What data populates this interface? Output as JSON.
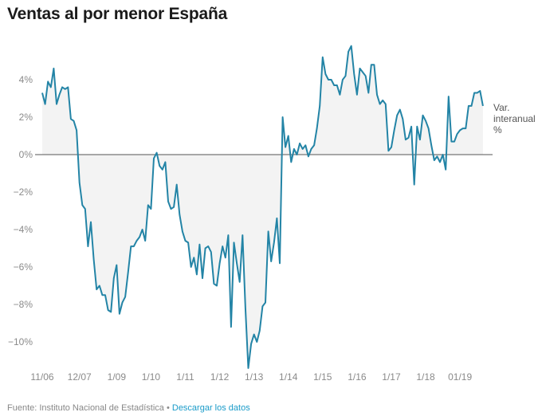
{
  "title": "Ventas al por menor España",
  "footer": {
    "source": "Fuente: Instituto Nacional de Estadística",
    "separator": "•",
    "link": "Descargar los datos"
  },
  "colors": {
    "line": "#2384a6",
    "area": "#f3f3f3",
    "zero_line": "#555555",
    "link": "#1a9bc9"
  },
  "chart_data": {
    "type": "area",
    "title": "Ventas al por menor España",
    "xlabel": "",
    "ylabel": "",
    "series_label": [
      "Var.",
      "interanual",
      "%"
    ],
    "ylim": [
      -11.5,
      6
    ],
    "yticks": [
      4,
      2,
      0,
      -2,
      -4,
      -6,
      -8,
      -10
    ],
    "ytick_labels": [
      "4%",
      "2%",
      "0%",
      "−2%",
      "−4%",
      "−6%",
      "−8%",
      "−10%"
    ],
    "xtick_labels": [
      "11/06",
      "12/07",
      "1/09",
      "1/10",
      "1/11",
      "1/12",
      "1/13",
      "1/14",
      "1/15",
      "1/16",
      "1/17",
      "1/18",
      "01/19"
    ],
    "xtick_month_index": [
      0,
      13,
      26,
      38,
      50,
      62,
      74,
      86,
      98,
      110,
      122,
      134,
      146
    ],
    "x_start": "11/06",
    "grid": false,
    "series": [
      {
        "name": "Var. interanual %",
        "values": [
          3.3,
          2.7,
          3.9,
          3.6,
          4.6,
          2.7,
          3.2,
          3.6,
          3.5,
          3.6,
          1.9,
          1.8,
          1.3,
          -1.5,
          -2.7,
          -2.9,
          -4.9,
          -3.6,
          -5.6,
          -7.2,
          -7.0,
          -7.5,
          -7.5,
          -8.3,
          -8.4,
          -6.6,
          -5.9,
          -8.5,
          -7.9,
          -7.6,
          -6.3,
          -4.9,
          -4.9,
          -4.6,
          -4.4,
          -4.0,
          -4.6,
          -2.7,
          -2.9,
          -0.2,
          0.1,
          -0.6,
          -0.8,
          -0.4,
          -2.5,
          -2.9,
          -2.8,
          -1.6,
          -3.2,
          -4.1,
          -4.6,
          -4.7,
          -6.0,
          -5.5,
          -6.4,
          -4.8,
          -6.6,
          -5.0,
          -4.9,
          -5.2,
          -6.9,
          -7.0,
          -5.8,
          -4.9,
          -5.5,
          -4.3,
          -9.2,
          -4.7,
          -5.8,
          -6.8,
          -4.3,
          -8.2,
          -11.4,
          -10.1,
          -9.6,
          -10.0,
          -9.4,
          -8.1,
          -7.9,
          -4.1,
          -5.7,
          -4.7,
          -3.4,
          -5.8,
          2.0,
          0.4,
          1.0,
          -0.4,
          0.3,
          0.0,
          0.6,
          0.3,
          0.5,
          -0.1,
          0.3,
          0.5,
          1.4,
          2.6,
          5.2,
          4.3,
          4.0,
          4.0,
          3.7,
          3.7,
          3.2,
          4.0,
          4.2,
          5.5,
          5.8,
          4.3,
          3.2,
          4.6,
          4.4,
          4.2,
          3.3,
          4.8,
          4.8,
          3.2,
          2.7,
          2.9,
          2.7,
          0.2,
          0.4,
          1.3,
          2.1,
          2.4,
          1.9,
          0.8,
          0.9,
          1.5,
          -1.6,
          1.5,
          0.8,
          2.1,
          1.8,
          1.4,
          0.5,
          -0.3,
          -0.1,
          -0.4,
          0.0,
          -0.8,
          3.1,
          0.7,
          0.7,
          1.1,
          1.3,
          1.4,
          1.4,
          2.6,
          2.6,
          3.3,
          3.3,
          3.4,
          2.6
        ]
      }
    ]
  }
}
